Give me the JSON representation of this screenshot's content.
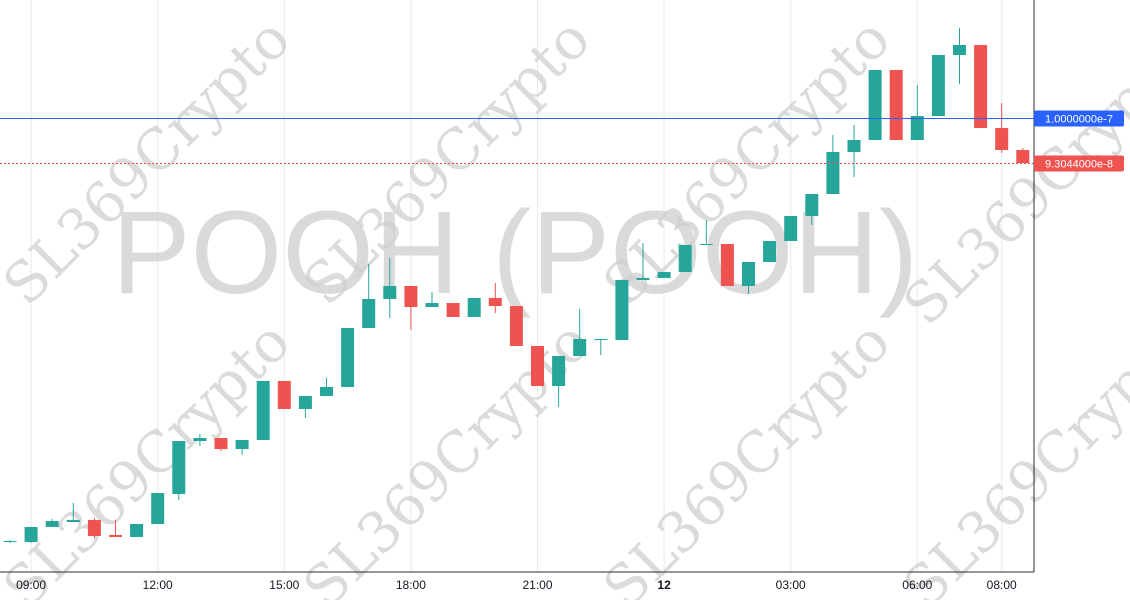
{
  "chart_data": {
    "type": "candlestick",
    "watermark_symbol": "POOH (POOH)",
    "watermark_brand": "SL369Crypto",
    "categories": [
      null,
      "09:00",
      null,
      null,
      null,
      null,
      null,
      "12:00",
      null,
      null,
      null,
      null,
      null,
      "15:00",
      null,
      null,
      null,
      null,
      null,
      "18:00",
      null,
      null,
      null,
      null,
      null,
      "21:00",
      null,
      null,
      null,
      null,
      null,
      "12",
      null,
      null,
      null,
      null,
      null,
      "03:00",
      null,
      null,
      null,
      null,
      null,
      "06:00",
      null,
      null,
      null,
      "08:00",
      null
    ],
    "open": [
      3.446e-08,
      3.446e-08,
      3.678e-08,
      3.755e-08,
      3.786e-08,
      3.554e-08,
      3.523e-08,
      3.724e-08,
      4.188e-08,
      5.007e-08,
      5.053e-08,
      4.883e-08,
      5.023e-08,
      5.935e-08,
      5.502e-08,
      5.703e-08,
      5.842e-08,
      6.754e-08,
      7.202e-08,
      7.403e-08,
      7.078e-08,
      7.14e-08,
      6.924e-08,
      7.218e-08,
      7.094e-08,
      6.476e-08,
      5.857e-08,
      6.321e-08,
      6.568e-08,
      6.568e-08,
      7.496e-08,
      7.527e-08,
      7.619e-08,
      8.037e-08,
      8.052e-08,
      7.403e-08,
      7.774e-08,
      8.099e-08,
      8.485e-08,
      8.825e-08,
      9.474e-08,
      9.66e-08,
      1.0742e-07,
      9.66e-08,
      1.0031e-07,
      1.0974e-07,
      1.1128e-07,
      9.845e-08,
      9.505e-08
    ],
    "high": [
      3.477e-08,
      3.678e-08,
      3.801e-08,
      4.049e-08,
      3.817e-08,
      3.786e-08,
      3.724e-08,
      4.203e-08,
      5.007e-08,
      5.115e-08,
      5.053e-08,
      5.023e-08,
      5.935e-08,
      5.935e-08,
      5.703e-08,
      5.981e-08,
      6.754e-08,
      7.743e-08,
      7.836e-08,
      7.403e-08,
      7.31e-08,
      7.14e-08,
      7.218e-08,
      7.449e-08,
      7.094e-08,
      6.476e-08,
      6.321e-08,
      7.048e-08,
      6.584e-08,
      7.496e-08,
      8.068e-08,
      7.619e-08,
      8.037e-08,
      8.423e-08,
      8.052e-08,
      7.774e-08,
      8.099e-08,
      8.485e-08,
      8.825e-08,
      9.737e-08,
      9.892e-08,
      1.0742e-07,
      1.0742e-07,
      1.051e-07,
      1.0974e-07,
      1.1391e-07,
      1.1128e-07,
      1.0232e-07,
      9.536e-08
    ],
    "low": [
      3.43e-08,
      3.43e-08,
      3.678e-08,
      3.755e-08,
      3.508e-08,
      3.523e-08,
      3.523e-08,
      3.724e-08,
      4.095e-08,
      4.93e-08,
      4.852e-08,
      4.791e-08,
      5.023e-08,
      5.502e-08,
      5.363e-08,
      5.703e-08,
      5.842e-08,
      6.754e-08,
      6.908e-08,
      6.723e-08,
      7.078e-08,
      6.924e-08,
      6.924e-08,
      6.986e-08,
      6.476e-08,
      5.857e-08,
      5.533e-08,
      6.321e-08,
      6.336e-08,
      6.568e-08,
      7.496e-08,
      7.527e-08,
      7.619e-08,
      8.037e-08,
      7.403e-08,
      7.279e-08,
      7.774e-08,
      8.099e-08,
      8.346e-08,
      8.825e-08,
      9.088e-08,
      9.66e-08,
      9.66e-08,
      9.66e-08,
      1.0031e-07,
      1.0526e-07,
      9.845e-08,
      9.459e-08,
      9.304e-08
    ],
    "close": [
      3.461e-08,
      3.678e-08,
      3.77e-08,
      3.786e-08,
      3.539e-08,
      3.523e-08,
      3.724e-08,
      4.203e-08,
      5.007e-08,
      5.053e-08,
      4.883e-08,
      5.023e-08,
      5.935e-08,
      5.502e-08,
      5.703e-08,
      5.842e-08,
      6.754e-08,
      7.202e-08,
      7.403e-08,
      7.078e-08,
      7.14e-08,
      6.924e-08,
      7.218e-08,
      7.094e-08,
      6.476e-08,
      5.857e-08,
      6.321e-08,
      6.584e-08,
      6.584e-08,
      7.496e-08,
      7.527e-08,
      7.619e-08,
      8.037e-08,
      8.052e-08,
      7.403e-08,
      7.774e-08,
      8.099e-08,
      8.485e-08,
      8.825e-08,
      9.474e-08,
      9.66e-08,
      1.0742e-07,
      9.66e-08,
      1.0031e-07,
      1.0974e-07,
      1.1128e-07,
      9.845e-08,
      9.505e-08,
      9.304e-08
    ],
    "up_color": "#26a69a",
    "down_color": "#ef5350",
    "ylim": [
      2.982e-08,
      1.1824e-07
    ],
    "price_lines": [
      {
        "value": 1e-07,
        "label": "1.0000000e-7",
        "color": "#2962ff",
        "dashed": false
      },
      {
        "value": 9.3044e-08,
        "label": "9.3044000e-8",
        "color": "#ef5350",
        "dashed": true
      }
    ],
    "grid": true
  }
}
